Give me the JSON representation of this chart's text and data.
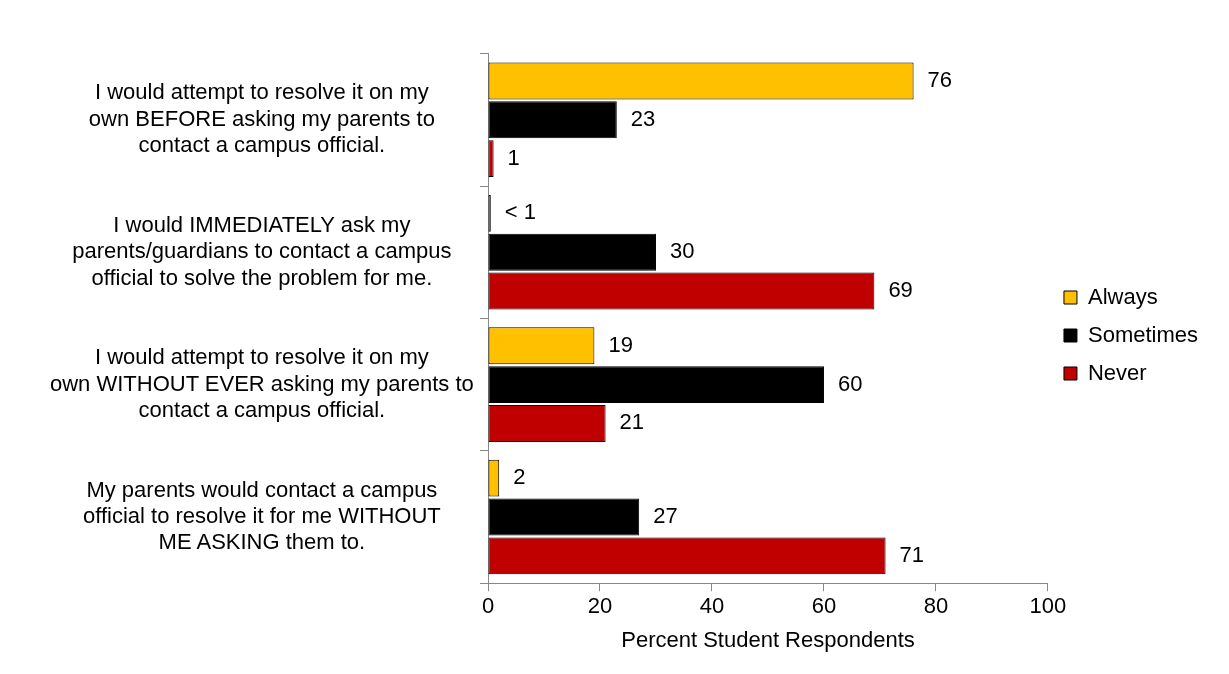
{
  "chart_data": {
    "type": "bar",
    "orientation": "horizontal",
    "xlabel": "Percent Student Respondents",
    "categories": [
      "I would attempt to resolve it on my own BEFORE asking my parents to contact a campus official.",
      "I would IMMEDIATELY ask my parents/guardians to contact a campus official to solve the problem for me.",
      "I would attempt to resolve it on my own WITHOUT EVER asking my parents to contact a campus official.",
      "My parents would contact a campus official to resolve it for me WITHOUT ME ASKING them to."
    ],
    "series": [
      {
        "name": "Always",
        "color": "#ffc000",
        "values": [
          76,
          0.5,
          19,
          2
        ],
        "value_labels": [
          "76",
          "< 1",
          "19",
          "2"
        ]
      },
      {
        "name": "Sometimes",
        "color": "#000000",
        "values": [
          23,
          30,
          60,
          27
        ],
        "value_labels": [
          "23",
          "30",
          "60",
          "27"
        ]
      },
      {
        "name": "Never",
        "color": "#c00000",
        "values": [
          1,
          69,
          21,
          71
        ],
        "value_labels": [
          "1",
          "69",
          "21",
          "71"
        ]
      }
    ],
    "xlim": [
      0,
      100
    ],
    "xticks": [
      0,
      20,
      40,
      60,
      80,
      100
    ],
    "grid": false,
    "legend": "right"
  }
}
